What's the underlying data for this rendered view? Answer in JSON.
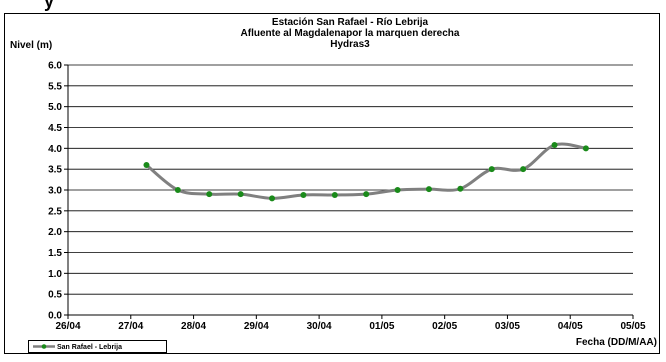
{
  "header_fragment": "y",
  "chart_data": {
    "type": "line",
    "title_lines": [
      "Estación San Rafael - Río Lebrija",
      "Afluente al Magdalenapor la marquen derecha",
      "Hydras3"
    ],
    "ylabel": "Nivel (m)",
    "xlabel": "Fecha (DD/M/AA)",
    "ylim": [
      0.0,
      6.0
    ],
    "yticks": [
      "0.0",
      "0.5",
      "1.0",
      "1.5",
      "2.0",
      "2.5",
      "3.0",
      "3.5",
      "4.0",
      "4.5",
      "5.0",
      "5.5",
      "6.0"
    ],
    "xlim": [
      0,
      9
    ],
    "xticks": [
      "26/04",
      "27/04",
      "28/04",
      "29/04",
      "30/04",
      "01/05",
      "02/05",
      "03/05",
      "04/05",
      "05/05"
    ],
    "grid": {
      "horizontal": true,
      "vertical": false
    },
    "legend_position": "bottom-left",
    "colors": {
      "line": "#808080",
      "marker": "#1a8a1a",
      "grid": "#000000"
    },
    "series": [
      {
        "name": "San Rafael - Lebrija",
        "x": [
          1.25,
          1.75,
          2.25,
          2.75,
          3.25,
          3.75,
          4.25,
          4.75,
          5.25,
          5.75,
          6.25,
          6.75,
          7.25,
          7.75,
          8.25
        ],
        "y": [
          3.6,
          3.0,
          2.9,
          2.9,
          2.8,
          2.88,
          2.88,
          2.9,
          3.0,
          3.02,
          3.03,
          3.5,
          3.5,
          4.08,
          4.0
        ]
      }
    ]
  }
}
